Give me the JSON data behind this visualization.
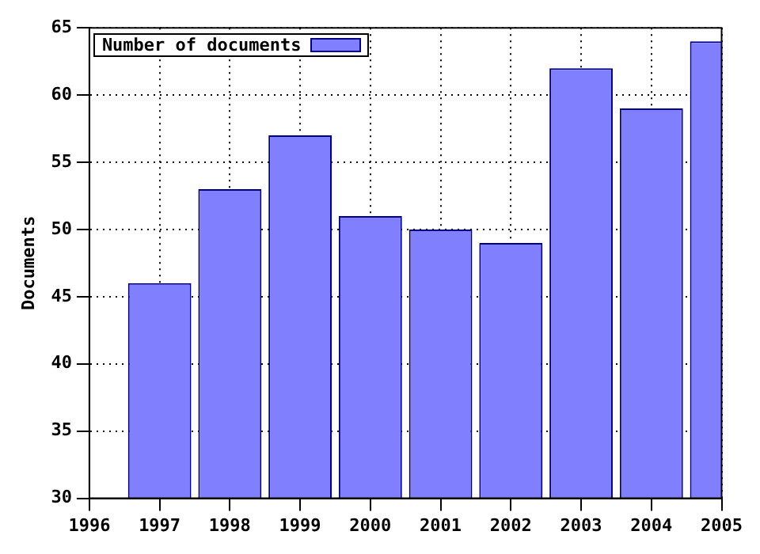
{
  "chart_data": {
    "type": "bar",
    "ylabel": "Documents",
    "x": [
      1997,
      1998,
      1999,
      2000,
      2001,
      2002,
      2003,
      2004,
      2005
    ],
    "series": [
      {
        "name": "Number of documents",
        "color": "#8080ff",
        "values": [
          46,
          53,
          57,
          51,
          50,
          49,
          62,
          59,
          64
        ]
      }
    ],
    "xlim": [
      1996,
      2005
    ],
    "xticks": [
      1996,
      1997,
      1998,
      1999,
      2000,
      2001,
      2002,
      2003,
      2004,
      2005
    ],
    "ylim": [
      30,
      65
    ],
    "yticks": [
      30,
      35,
      40,
      45,
      50,
      55,
      60,
      65
    ],
    "grid": true,
    "legend": "top left"
  }
}
